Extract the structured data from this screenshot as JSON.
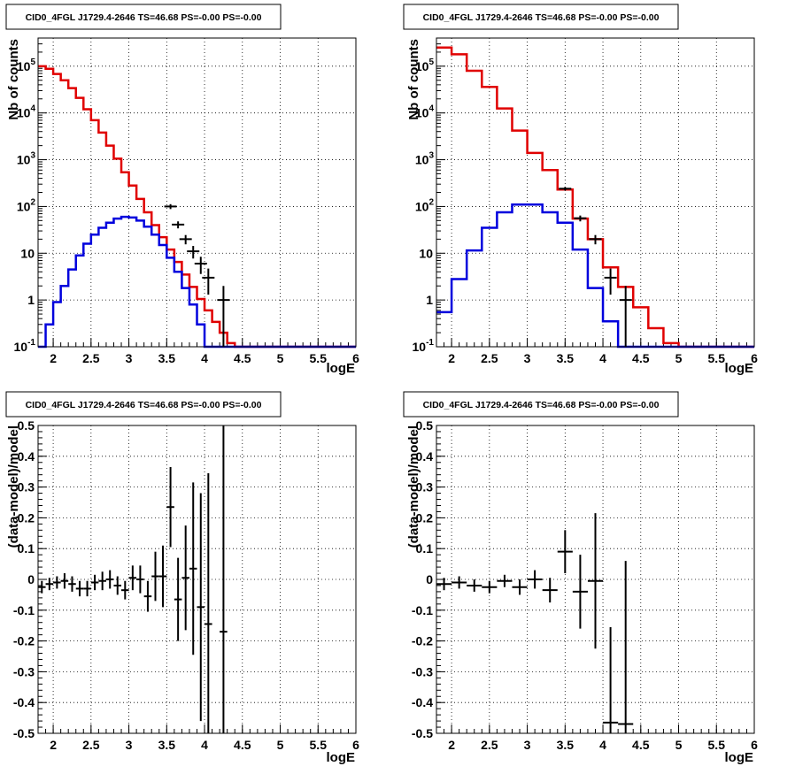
{
  "chart_data": [
    {
      "id": "p1",
      "type": "histogram",
      "title": "CID0_4FGL J1729.4-2646 TS=46.68 PS=-0.00 PS=-0.00",
      "xlabel": "logE",
      "ylabel": "Nb of counts",
      "xlim": [
        1.8,
        6
      ],
      "ylim": [
        0.1,
        400000
      ],
      "log_y": true,
      "grid": true,
      "x_ticks": [
        "2",
        "2.5",
        "3",
        "3.5",
        "4",
        "4.5",
        "5",
        "5.5",
        "6"
      ],
      "y_ticks": [
        "10^-1",
        "1",
        "10",
        "10^2",
        "10^3",
        "10^4",
        "10^5"
      ],
      "bin_edges": [
        1.8,
        1.9,
        2.0,
        2.1,
        2.2,
        2.3,
        2.4,
        2.5,
        2.6,
        2.7,
        2.8,
        2.9,
        3.0,
        3.1,
        3.2,
        3.3,
        3.4,
        3.5,
        3.6,
        3.7,
        3.8,
        3.9,
        4.0,
        4.1,
        4.2,
        4.3,
        4.4,
        4.5,
        4.6,
        4.7,
        4.8,
        4.9,
        5.0,
        5.1,
        5.2,
        5.3,
        5.4,
        5.5,
        5.6,
        5.7,
        5.8,
        5.9,
        6.0
      ],
      "series": [
        {
          "color": "#e00000",
          "style": "step",
          "values": [
            100000,
            88000,
            68000,
            50000,
            34000,
            21000,
            12000,
            7000,
            3800,
            2000,
            1050,
            540,
            280,
            145,
            75,
            40,
            22,
            12,
            6.5,
            3.5,
            1.9,
            1.05,
            0.6,
            0.34,
            0.2,
            0.12,
            0.1,
            0.1,
            0.1,
            0.1,
            0.1,
            0.1,
            0.1,
            0.1,
            0.1,
            0.1,
            0.1,
            0.1,
            0.1,
            0.1,
            0.1,
            0.1
          ]
        },
        {
          "color": "#0000dd",
          "style": "step",
          "values": [
            0.1,
            0.3,
            0.9,
            2.0,
            4.5,
            9.0,
            16,
            25,
            35,
            45,
            55,
            60,
            58,
            50,
            37,
            25,
            15,
            8.0,
            4.0,
            1.8,
            0.8,
            0.3,
            0.1,
            0.1,
            0.1,
            0.1,
            0.1,
            0.1,
            0.1,
            0.1,
            0.1,
            0.1,
            0.1,
            0.1,
            0.1,
            0.1,
            0.1,
            0.1,
            0.1,
            0.1,
            0.1,
            0.1
          ]
        }
      ],
      "data_points": [
        {
          "x": 3.55,
          "y": 100,
          "ylo": 88,
          "yhi": 112
        },
        {
          "x": 3.65,
          "y": 41,
          "ylo": 34,
          "yhi": 48
        },
        {
          "x": 3.75,
          "y": 20,
          "ylo": 15.5,
          "yhi": 24.5
        },
        {
          "x": 3.85,
          "y": 11,
          "ylo": 7.7,
          "yhi": 14.3
        },
        {
          "x": 3.95,
          "y": 6,
          "ylo": 3.6,
          "yhi": 8.4
        },
        {
          "x": 4.05,
          "y": 3,
          "ylo": 1.3,
          "yhi": 4.7
        },
        {
          "x": 4.25,
          "y": 1,
          "ylo": 0.1,
          "yhi": 2.0
        }
      ]
    },
    {
      "id": "p2",
      "type": "histogram",
      "title": "CID0_4FGL J1729.4-2646 TS=46.68 PS=-0.00 PS=-0.00",
      "xlabel": "logE",
      "ylabel": "Nb of counts",
      "xlim": [
        1.8,
        6
      ],
      "ylim": [
        0.1,
        400000
      ],
      "log_y": true,
      "grid": true,
      "x_ticks": [
        "2",
        "2.5",
        "3",
        "3.5",
        "4",
        "4.5",
        "5",
        "5.5",
        "6"
      ],
      "y_ticks": [
        "10^-1",
        "1",
        "10",
        "10^2",
        "10^3",
        "10^4",
        "10^5"
      ],
      "bin_edges": [
        1.8,
        2.0,
        2.2,
        2.4,
        2.6,
        2.8,
        3.0,
        3.2,
        3.4,
        3.6,
        3.8,
        4.0,
        4.2,
        4.4,
        4.6,
        4.8,
        5.0,
        5.2,
        5.4,
        5.6,
        5.8,
        6.0
      ],
      "series": [
        {
          "color": "#e00000",
          "style": "step",
          "values": [
            250000,
            180000,
            80000,
            36000,
            12500,
            4200,
            1400,
            600,
            230,
            55,
            20,
            5,
            1.9,
            0.7,
            0.25,
            0.12,
            0.1,
            0.1,
            0.1,
            0.1,
            0.1
          ]
        },
        {
          "color": "#0000dd",
          "style": "step",
          "values": [
            0.55,
            2.8,
            11.5,
            35,
            75,
            110,
            110,
            75,
            45,
            12,
            1.8,
            0.35,
            0.1,
            0.1,
            0.1,
            0.1,
            0.1,
            0.1,
            0.1,
            0.1,
            0.1
          ]
        }
      ],
      "data_points": [
        {
          "x": 3.5,
          "y": 240,
          "ylo": 220,
          "yhi": 260
        },
        {
          "x": 3.7,
          "y": 56,
          "ylo": 48,
          "yhi": 64
        },
        {
          "x": 3.9,
          "y": 20,
          "ylo": 15.5,
          "yhi": 24.5
        },
        {
          "x": 4.1,
          "y": 3,
          "ylo": 1.3,
          "yhi": 4.7
        },
        {
          "x": 4.3,
          "y": 1,
          "ylo": 0.1,
          "yhi": 2.0
        }
      ]
    },
    {
      "id": "p3",
      "type": "scatter",
      "title": "CID0_4FGL J1729.4-2646 TS=46.68 PS=-0.00 PS=-0.00",
      "xlabel": "logE",
      "ylabel": "(data-model)/model",
      "xlim": [
        1.8,
        6
      ],
      "ylim": [
        -0.5,
        0.5
      ],
      "log_y": false,
      "grid": true,
      "x_ticks": [
        "2",
        "2.5",
        "3",
        "3.5",
        "4",
        "4.5",
        "5",
        "5.5",
        "6"
      ],
      "y_ticks": [
        "-0.5",
        "-0.4",
        "-0.3",
        "-0.2",
        "-0.1",
        "0",
        "0.1",
        "0.2",
        "0.3",
        "0.4",
        "0.5"
      ],
      "points": [
        {
          "x": 1.85,
          "xerr": 0.05,
          "y": -0.025,
          "yerr": 0.02
        },
        {
          "x": 1.95,
          "xerr": 0.05,
          "y": -0.015,
          "yerr": 0.02
        },
        {
          "x": 2.05,
          "xerr": 0.05,
          "y": -0.01,
          "yerr": 0.02
        },
        {
          "x": 2.15,
          "xerr": 0.05,
          "y": -0.005,
          "yerr": 0.025
        },
        {
          "x": 2.25,
          "xerr": 0.05,
          "y": -0.015,
          "yerr": 0.025
        },
        {
          "x": 2.35,
          "xerr": 0.05,
          "y": -0.03,
          "yerr": 0.025
        },
        {
          "x": 2.45,
          "xerr": 0.05,
          "y": -0.03,
          "yerr": 0.025
        },
        {
          "x": 2.55,
          "xerr": 0.05,
          "y": -0.01,
          "yerr": 0.025
        },
        {
          "x": 2.65,
          "xerr": 0.05,
          "y": -0.005,
          "yerr": 0.03
        },
        {
          "x": 2.75,
          "xerr": 0.05,
          "y": 0.0,
          "yerr": 0.03
        },
        {
          "x": 2.85,
          "xerr": 0.05,
          "y": -0.02,
          "yerr": 0.03
        },
        {
          "x": 2.95,
          "xerr": 0.05,
          "y": -0.035,
          "yerr": 0.03
        },
        {
          "x": 3.05,
          "xerr": 0.05,
          "y": 0.005,
          "yerr": 0.04
        },
        {
          "x": 3.15,
          "xerr": 0.05,
          "y": 0.0,
          "yerr": 0.045
        },
        {
          "x": 3.25,
          "xerr": 0.05,
          "y": -0.055,
          "yerr": 0.05
        },
        {
          "x": 3.35,
          "xerr": 0.05,
          "y": 0.01,
          "yerr": 0.08
        },
        {
          "x": 3.45,
          "xerr": 0.05,
          "y": 0.01,
          "yerr": 0.1
        },
        {
          "x": 3.55,
          "xerr": 0.05,
          "y": 0.235,
          "yerr": 0.13
        },
        {
          "x": 3.65,
          "xerr": 0.05,
          "y": -0.065,
          "yerr": 0.135
        },
        {
          "x": 3.75,
          "xerr": 0.05,
          "y": 0.005,
          "yerr": 0.17
        },
        {
          "x": 3.85,
          "xerr": 0.05,
          "y": 0.035,
          "yerr": 0.28
        },
        {
          "x": 3.95,
          "xerr": 0.05,
          "y": -0.09,
          "yerr": 0.37
        },
        {
          "x": 4.05,
          "xerr": 0.05,
          "y": -0.145,
          "yerr": 0.49
        },
        {
          "x": 4.25,
          "xerr": 0.05,
          "y": -0.17,
          "yerr": 0.68
        }
      ]
    },
    {
      "id": "p4",
      "type": "scatter",
      "title": "CID0_4FGL J1729.4-2646 TS=46.68 PS=-0.00 PS=-0.00",
      "xlabel": "logE",
      "ylabel": "(data-model)/model",
      "xlim": [
        1.8,
        6
      ],
      "ylim": [
        -0.5,
        0.5
      ],
      "log_y": false,
      "grid": true,
      "x_ticks": [
        "2",
        "2.5",
        "3",
        "3.5",
        "4",
        "4.5",
        "5",
        "5.5",
        "6"
      ],
      "y_ticks": [
        "-0.5",
        "-0.4",
        "-0.3",
        "-0.2",
        "-0.1",
        "0",
        "0.1",
        "0.2",
        "0.3",
        "0.4",
        "0.5"
      ],
      "points": [
        {
          "x": 1.9,
          "xerr": 0.1,
          "y": -0.015,
          "yerr": 0.02
        },
        {
          "x": 2.1,
          "xerr": 0.1,
          "y": -0.01,
          "yerr": 0.02
        },
        {
          "x": 2.3,
          "xerr": 0.1,
          "y": -0.02,
          "yerr": 0.02
        },
        {
          "x": 2.5,
          "xerr": 0.1,
          "y": -0.025,
          "yerr": 0.02
        },
        {
          "x": 2.7,
          "xerr": 0.1,
          "y": -0.005,
          "yerr": 0.02
        },
        {
          "x": 2.9,
          "xerr": 0.1,
          "y": -0.025,
          "yerr": 0.025
        },
        {
          "x": 3.1,
          "xerr": 0.1,
          "y": 0.0,
          "yerr": 0.03
        },
        {
          "x": 3.3,
          "xerr": 0.1,
          "y": -0.035,
          "yerr": 0.04
        },
        {
          "x": 3.5,
          "xerr": 0.1,
          "y": 0.09,
          "yerr": 0.07
        },
        {
          "x": 3.7,
          "xerr": 0.1,
          "y": -0.04,
          "yerr": 0.12
        },
        {
          "x": 3.9,
          "xerr": 0.1,
          "y": -0.005,
          "yerr": 0.22
        },
        {
          "x": 4.1,
          "xerr": 0.1,
          "y": -0.465,
          "yerr": 0.31
        },
        {
          "x": 4.3,
          "xerr": 0.1,
          "y": -0.47,
          "yerr": 0.53
        }
      ]
    }
  ]
}
